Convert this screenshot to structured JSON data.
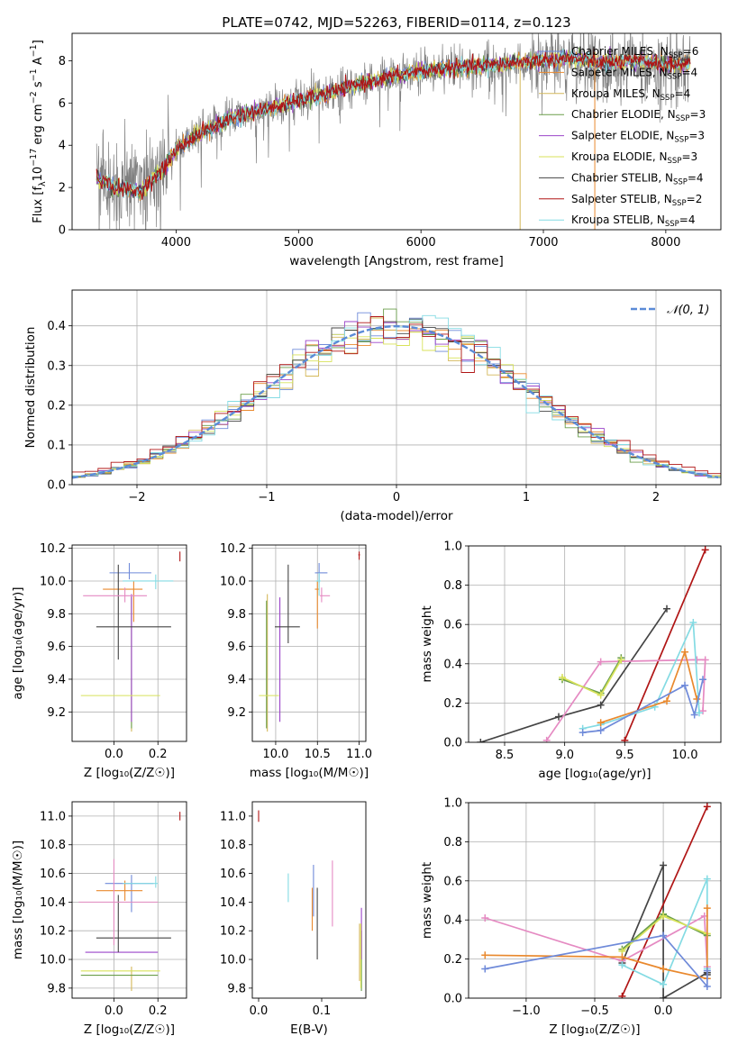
{
  "series_names": [
    "Chabrier MILES",
    "Salpeter MILES",
    "Kroupa MILES",
    "Chabrier ELODIE",
    "Salpeter ELODIE",
    "Kroupa ELODIE",
    "Chabrier STELIB",
    "Salpeter STELIB",
    "Kroupa STELIB"
  ],
  "series_nssp": [
    "6",
    "4",
    "4",
    "3",
    "3",
    "3",
    "4",
    "2",
    "4"
  ],
  "series_colors": [
    "#6f8ad9",
    "#e9892e",
    "#d4b85a",
    "#6a9e4a",
    "#9b44c9",
    "#d8e25a",
    "#444444",
    "#b01515",
    "#84dbe3"
  ],
  "chart_data": [
    {
      "id": "spectrum",
      "type": "line",
      "title": "PLATE=0742, MJD=52263, FIBERID=0114, z=0.123",
      "xlabel": "wavelength [Angstrom, rest frame]",
      "ylabel_prefix": "Flux [f",
      "ylabel_sub": "λ",
      "ylabel_mid": "10",
      "ylabel_sup1": "−17",
      "ylabel_mid2": " erg cm",
      "ylabel_sup2": "−2",
      "ylabel_mid3": " s",
      "ylabel_sup3": "−1",
      "ylabel_mid4": " A",
      "ylabel_sup4": "−1",
      "ylabel_end": "]",
      "xlim": [
        3150,
        8450
      ],
      "ylim": [
        0,
        9.3
      ],
      "xticks": [
        4000,
        5000,
        6000,
        7000,
        8000
      ],
      "yticks": [
        0,
        2,
        4,
        6,
        8
      ],
      "data_color": "#808080",
      "model_envelope": {
        "x": [
          3350,
          3500,
          3700,
          3900,
          4000,
          4200,
          4500,
          4800,
          5000,
          5200,
          5500,
          5800,
          6000,
          6300,
          6600,
          6900,
          7200,
          7500,
          7800,
          8000,
          8200
        ],
        "y": [
          2.5,
          2.0,
          1.8,
          2.9,
          3.8,
          4.6,
          5.4,
          5.8,
          6.1,
          6.4,
          6.9,
          7.3,
          7.5,
          7.7,
          7.8,
          8.0,
          8.1,
          7.9,
          8.0,
          7.8,
          7.9
        ]
      },
      "legend_position": "upper right"
    },
    {
      "id": "residuals",
      "type": "histogram",
      "xlabel": "(data-model)/error",
      "ylabel": "Normed distribution",
      "xlim": [
        -2.5,
        2.5
      ],
      "ylim": [
        0,
        0.49
      ],
      "xticks": [
        -2,
        -1,
        0,
        1,
        2
      ],
      "xticklabels": [
        "−2",
        "−1",
        "0",
        "1",
        "2"
      ],
      "yticks": [
        0.0,
        0.1,
        0.2,
        0.3,
        0.4
      ],
      "yticklabels": [
        "0.0",
        "0.1",
        "0.2",
        "0.3",
        "0.4"
      ],
      "bin_width": 0.1,
      "reference_label": "𝒩(0, 1)",
      "reference_color": "#5b8bd7",
      "legend_position": "upper right",
      "grid": true
    },
    {
      "id": "age_vs_Z",
      "type": "errorbar",
      "xlabel": "Z [log₁₀(Z/Z☉)]",
      "ylabel": "age  [log₁₀(age/yr)]",
      "xlim": [
        -0.19,
        0.33
      ],
      "ylim": [
        9.02,
        10.22
      ],
      "xticks": [
        0.0,
        0.2
      ],
      "xticklabels": [
        "0.0",
        "0.2"
      ],
      "yticks": [
        9.2,
        9.4,
        9.6,
        9.8,
        10.0,
        10.2
      ],
      "yticklabels": [
        "9.2",
        "9.4",
        "9.6",
        "9.8",
        "10.0",
        "10.2"
      ],
      "grid": true,
      "points": [
        {
          "x": 0.07,
          "y": 10.05,
          "xerr": [
            0.09,
            0.1
          ],
          "yerr": [
            0.04,
            0.06
          ],
          "color": "#6f8ad9"
        },
        {
          "x": 0.09,
          "y": 9.95,
          "xerr": [
            0.14,
            0.04
          ],
          "yerr": [
            0.2,
            0.05
          ],
          "color": "#e9892e"
        },
        {
          "x": 0.08,
          "y": 9.86,
          "xerr": [
            0.0,
            0.0
          ],
          "yerr": [
            0.78,
            0.05
          ],
          "color": "#d4b85a"
        },
        {
          "x": 0.08,
          "y": 9.88,
          "xerr": [
            0.0,
            0.0
          ],
          "yerr": [
            0.78,
            0.02
          ],
          "color": "#6a9e4a"
        },
        {
          "x": 0.08,
          "y": 9.9,
          "xerr": [
            0.0,
            0.0
          ],
          "yerr": [
            0.76,
            0.02
          ],
          "color": "#9b44c9"
        },
        {
          "x": 0.03,
          "y": 9.3,
          "xerr": [
            0.18,
            0.18
          ],
          "yerr": [
            0.0,
            0.0
          ],
          "color": "#d8e25a"
        },
        {
          "x": 0.02,
          "y": 9.72,
          "xerr": [
            0.1,
            0.24
          ],
          "yerr": [
            0.2,
            0.38
          ],
          "color": "#444444"
        },
        {
          "x": 0.3,
          "y": 10.15,
          "xerr": [
            0.0,
            0.0
          ],
          "yerr": [
            0.03,
            0.03
          ],
          "color": "#b01515"
        },
        {
          "x": 0.19,
          "y": 10.0,
          "xerr": [
            0.15,
            0.08
          ],
          "yerr": [
            0.05,
            0.04
          ],
          "color": "#84dbe3"
        },
        {
          "x": 0.05,
          "y": 9.91,
          "xerr": [
            0.19,
            0.1
          ],
          "yerr": [
            0.04,
            0.05
          ],
          "color": "#e58ac2"
        }
      ]
    },
    {
      "id": "age_vs_mass",
      "type": "errorbar",
      "xlabel": "mass [log₁₀(M/M☉)]",
      "ylabel": "",
      "xlim": [
        9.72,
        11.08
      ],
      "ylim": [
        9.02,
        10.22
      ],
      "xticks": [
        10.0,
        10.5,
        11.0
      ],
      "xticklabels": [
        "10.0",
        "10.5",
        "11.0"
      ],
      "yticks": [
        9.2,
        9.4,
        9.6,
        9.8,
        10.0,
        10.2
      ],
      "yticklabels": [
        "9.2",
        "9.4",
        "9.6",
        "9.8",
        "10.0",
        "10.2"
      ],
      "grid": true,
      "points": [
        {
          "x": 10.52,
          "y": 10.05,
          "xerr": [
            0.05,
            0.1
          ],
          "yerr": [
            0.06,
            0.06
          ],
          "color": "#6f8ad9"
        },
        {
          "x": 10.5,
          "y": 9.95,
          "xerr": [
            0.03,
            0.02
          ],
          "yerr": [
            0.24,
            0.05
          ],
          "color": "#e9892e"
        },
        {
          "x": 9.9,
          "y": 9.86,
          "xerr": [
            0.0,
            0.0
          ],
          "yerr": [
            0.78,
            0.06
          ],
          "color": "#d4b85a"
        },
        {
          "x": 9.89,
          "y": 9.88,
          "xerr": [
            0.0,
            0.0
          ],
          "yerr": [
            0.78,
            0.0
          ],
          "color": "#6a9e4a"
        },
        {
          "x": 10.05,
          "y": 9.9,
          "xerr": [
            0.0,
            0.0
          ],
          "yerr": [
            0.76,
            0.0
          ],
          "color": "#9b44c9"
        },
        {
          "x": 9.92,
          "y": 9.3,
          "xerr": [
            0.12,
            0.12
          ],
          "yerr": [
            0.0,
            0.0
          ],
          "color": "#d8e25a"
        },
        {
          "x": 10.15,
          "y": 9.72,
          "xerr": [
            0.16,
            0.14
          ],
          "yerr": [
            0.1,
            0.38
          ],
          "color": "#444444"
        },
        {
          "x": 11.0,
          "y": 10.16,
          "xerr": [
            0.01,
            0.01
          ],
          "yerr": [
            0.03,
            0.02
          ],
          "color": "#b01515"
        },
        {
          "x": 10.52,
          "y": 10.0,
          "xerr": [
            0.04,
            0.02
          ],
          "yerr": [
            0.09,
            0.05
          ],
          "color": "#84dbe3"
        },
        {
          "x": 10.55,
          "y": 9.91,
          "xerr": [
            0.02,
            0.1
          ],
          "yerr": [
            0.04,
            0.05
          ],
          "color": "#e58ac2"
        }
      ]
    },
    {
      "id": "weight_vs_age",
      "type": "line",
      "xlabel": "age  [log₁₀(age/yr)]",
      "ylabel": "mass weight",
      "xlim": [
        8.2,
        10.3
      ],
      "ylim": [
        0,
        1.0
      ],
      "xticks": [
        8.5,
        9.0,
        9.5,
        10.0
      ],
      "xticklabels": [
        "8.5",
        "9.0",
        "9.5",
        "10.0"
      ],
      "yticks": [
        0.0,
        0.2,
        0.4,
        0.6,
        0.8,
        1.0
      ],
      "yticklabels": [
        "0.0",
        "0.2",
        "0.4",
        "0.6",
        "0.8",
        "1.0"
      ],
      "grid": true,
      "series": [
        {
          "color": "#444444",
          "x": [
            8.3,
            8.95,
            9.3,
            9.85
          ],
          "y": [
            0.0,
            0.13,
            0.19,
            0.68
          ]
        },
        {
          "color": "#b01515",
          "x": [
            9.5,
            10.17
          ],
          "y": [
            0.01,
            0.98
          ]
        },
        {
          "color": "#e58ac2",
          "x": [
            8.85,
            9.3,
            10.1,
            10.17,
            10.15
          ],
          "y": [
            0.01,
            0.41,
            0.42,
            0.42,
            0.16
          ]
        },
        {
          "color": "#6a9e4a",
          "x": [
            8.98,
            9.3,
            9.47
          ],
          "y": [
            0.32,
            0.25,
            0.43
          ]
        },
        {
          "color": "#d8e25a",
          "x": [
            8.98,
            9.3,
            9.47
          ],
          "y": [
            0.33,
            0.24,
            0.42
          ]
        },
        {
          "color": "#84dbe3",
          "x": [
            9.15,
            9.3,
            9.75,
            10.07,
            10.12
          ],
          "y": [
            0.07,
            0.09,
            0.18,
            0.61,
            0.15
          ]
        },
        {
          "color": "#e9892e",
          "x": [
            9.3,
            9.85,
            10.0,
            10.1
          ],
          "y": [
            0.1,
            0.21,
            0.46,
            0.22
          ]
        },
        {
          "color": "#6f8ad9",
          "x": [
            9.15,
            9.3,
            10.0,
            10.08,
            10.15
          ],
          "y": [
            0.05,
            0.06,
            0.29,
            0.14,
            0.32
          ]
        }
      ]
    },
    {
      "id": "mass_vs_Z",
      "type": "errorbar",
      "xlabel": "Z [log₁₀(Z/Z☉)]",
      "ylabel": "mass [log₁₀(M/M☉)]",
      "xlim": [
        -0.19,
        0.33
      ],
      "ylim": [
        9.73,
        11.1
      ],
      "xticks": [
        0.0,
        0.2
      ],
      "xticklabels": [
        "0.0",
        "0.2"
      ],
      "yticks": [
        9.8,
        10.0,
        10.2,
        10.4,
        10.6,
        10.8,
        11.0
      ],
      "yticklabels": [
        "9.8",
        "10.0",
        "10.2",
        "10.4",
        "10.6",
        "10.8",
        "11.0"
      ],
      "grid": true,
      "points": [
        {
          "x": 0.08,
          "y": 10.53,
          "xerr": [
            0.12,
            0.1
          ],
          "yerr": [
            0.2,
            0.06
          ],
          "color": "#6f8ad9"
        },
        {
          "x": 0.05,
          "y": 10.48,
          "xerr": [
            0.13,
            0.08
          ],
          "yerr": [
            0.07,
            0.07
          ],
          "color": "#e9892e"
        },
        {
          "x": 0.08,
          "y": 9.9,
          "xerr": [
            0.0,
            0.0
          ],
          "yerr": [
            0.12,
            0.05
          ],
          "color": "#d4b85a"
        },
        {
          "x": 0.05,
          "y": 9.89,
          "xerr": [
            0.2,
            0.15
          ],
          "yerr": [
            0.0,
            0.0
          ],
          "color": "#6a9e4a"
        },
        {
          "x": 0.0,
          "y": 10.05,
          "xerr": [
            0.13,
            0.2
          ],
          "yerr": [
            0.0,
            0.0
          ],
          "color": "#9b44c9"
        },
        {
          "x": 0.03,
          "y": 9.92,
          "xerr": [
            0.18,
            0.18
          ],
          "yerr": [
            0.0,
            0.0
          ],
          "color": "#d8e25a"
        },
        {
          "x": 0.02,
          "y": 10.15,
          "xerr": [
            0.1,
            0.24
          ],
          "yerr": [
            0.1,
            0.3
          ],
          "color": "#444444"
        },
        {
          "x": 0.3,
          "y": 11.0,
          "xerr": [
            0.0,
            0.0
          ],
          "yerr": [
            0.03,
            0.03
          ],
          "color": "#b01515"
        },
        {
          "x": 0.19,
          "y": 10.53,
          "xerr": [
            0.15,
            0.01
          ],
          "yerr": [
            0.03,
            0.05
          ],
          "color": "#84dbe3"
        },
        {
          "x": 0.0,
          "y": 10.4,
          "xerr": [
            0.16,
            0.2
          ],
          "yerr": [
            0.3,
            0.3
          ],
          "color": "#e58ac2"
        }
      ]
    },
    {
      "id": "mass_vs_ebv",
      "type": "errorbar",
      "xlabel": "E(B-V)",
      "ylabel": "",
      "xlim": [
        -0.01,
        0.17
      ],
      "ylim": [
        9.73,
        11.1
      ],
      "xticks": [
        0.0,
        0.1
      ],
      "xticklabels": [
        "0.0",
        "0.1"
      ],
      "yticks": [
        9.8,
        10.0,
        10.2,
        10.4,
        10.6,
        10.8,
        11.0
      ],
      "yticklabels": [
        "9.8",
        "10.0",
        "10.2",
        "10.4",
        "10.6",
        "10.8",
        "11.0"
      ],
      "grid": false,
      "points": [
        {
          "x": 0.087,
          "y": 10.5,
          "xerr": [
            0.0,
            0.0
          ],
          "yerr": [
            0.2,
            0.16
          ],
          "color": "#6f8ad9"
        },
        {
          "x": 0.085,
          "y": 10.4,
          "xerr": [
            0.0,
            0.0
          ],
          "yerr": [
            0.2,
            0.1
          ],
          "color": "#e9892e"
        },
        {
          "x": 0.16,
          "y": 10.05,
          "xerr": [
            0.0,
            0.0
          ],
          "yerr": [
            0.2,
            0.2
          ],
          "color": "#d4b85a"
        },
        {
          "x": 0.163,
          "y": 10.05,
          "xerr": [
            0.0,
            0.0
          ],
          "yerr": [
            0.27,
            0.15
          ],
          "color": "#6a9e4a"
        },
        {
          "x": 0.163,
          "y": 10.1,
          "xerr": [
            0.0,
            0.0
          ],
          "yerr": [
            0.1,
            0.26
          ],
          "color": "#9b44c9"
        },
        {
          "x": 0.162,
          "y": 10.05,
          "xerr": [
            0.0,
            0.0
          ],
          "yerr": [
            0.25,
            0.2
          ],
          "color": "#d8e25a"
        },
        {
          "x": 0.093,
          "y": 10.2,
          "xerr": [
            0.0,
            0.0
          ],
          "yerr": [
            0.2,
            0.3
          ],
          "color": "#444444"
        },
        {
          "x": 0.0,
          "y": 11.0,
          "xerr": [
            0.0,
            0.0
          ],
          "yerr": [
            0.04,
            0.04
          ],
          "color": "#b01515"
        },
        {
          "x": 0.047,
          "y": 10.5,
          "xerr": [
            0.0,
            0.0
          ],
          "yerr": [
            0.1,
            0.1
          ],
          "color": "#84dbe3"
        },
        {
          "x": 0.117,
          "y": 10.45,
          "xerr": [
            0.0,
            0.0
          ],
          "yerr": [
            0.22,
            0.24
          ],
          "color": "#e58ac2"
        }
      ]
    },
    {
      "id": "weight_vs_Z",
      "type": "line",
      "xlabel": "Z [log₁₀(Z/Z☉)]",
      "ylabel": "mass weight",
      "xlim": [
        -1.42,
        0.42
      ],
      "ylim": [
        0,
        1.0
      ],
      "xticks": [
        -1.0,
        -0.5,
        0.0
      ],
      "xticklabels": [
        "−1.0",
        "−0.5",
        "0.0"
      ],
      "yticks": [
        0.0,
        0.2,
        0.4,
        0.6,
        0.8,
        1.0
      ],
      "yticklabels": [
        "0.0",
        "0.2",
        "0.4",
        "0.6",
        "0.8",
        "1.0"
      ],
      "grid": true,
      "series": [
        {
          "color": "#444444",
          "x": [
            -0.3,
            0.0,
            0.0,
            0.32,
            0.32
          ],
          "y": [
            0.18,
            0.68,
            0.0,
            0.13,
            0.12
          ]
        },
        {
          "color": "#b01515",
          "x": [
            -0.3,
            0.32
          ],
          "y": [
            0.01,
            0.98
          ]
        },
        {
          "color": "#e58ac2",
          "x": [
            -1.3,
            -0.3,
            0.3,
            0.32
          ],
          "y": [
            0.41,
            0.19,
            0.42,
            0.16
          ]
        },
        {
          "color": "#6a9e4a",
          "x": [
            -0.3,
            0.0,
            0.32
          ],
          "y": [
            0.25,
            0.43,
            0.32
          ]
        },
        {
          "color": "#d8e25a",
          "x": [
            -0.3,
            0.0,
            0.32
          ],
          "y": [
            0.24,
            0.42,
            0.33
          ]
        },
        {
          "color": "#84dbe3",
          "x": [
            -0.3,
            0.0,
            0.32,
            0.32
          ],
          "y": [
            0.17,
            0.07,
            0.61,
            0.15
          ]
        },
        {
          "color": "#e9892e",
          "x": [
            -1.3,
            -0.3,
            0.0,
            0.32,
            0.32
          ],
          "y": [
            0.22,
            0.21,
            0.15,
            0.1,
            0.46
          ]
        },
        {
          "color": "#6f8ad9",
          "x": [
            -1.3,
            0.0,
            0.32,
            0.32
          ],
          "y": [
            0.15,
            0.32,
            0.06,
            0.14
          ]
        }
      ]
    }
  ]
}
